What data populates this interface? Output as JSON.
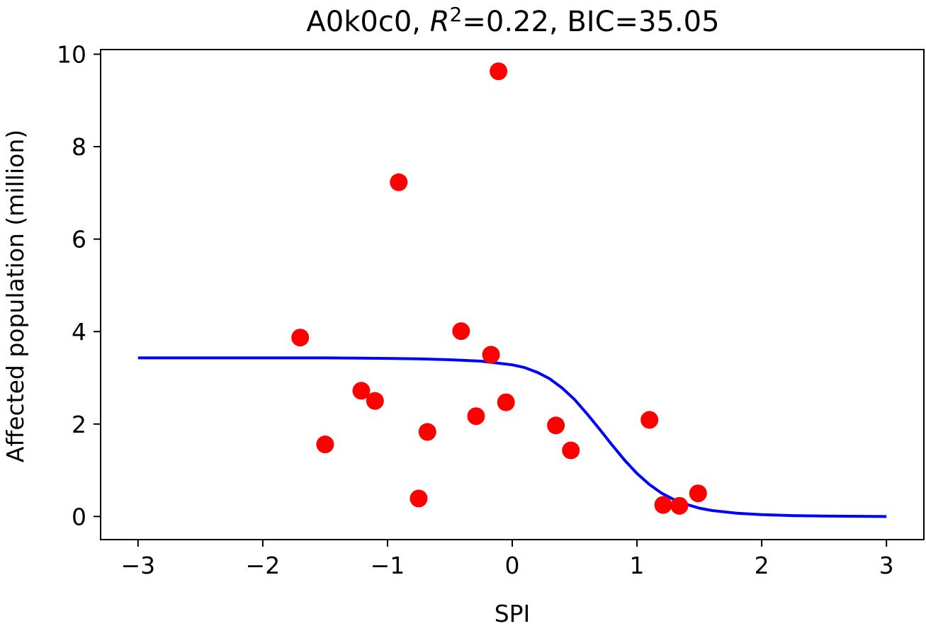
{
  "chart_data": {
    "type": "scatter",
    "title": {
      "model": "A0k0c0",
      "r2_symbol": "R",
      "r2_exponent": "2",
      "r2_value": "=0.22, BIC=35.05"
    },
    "xlabel": "SPI",
    "ylabel": "Affected population (million)",
    "xlim": [
      -3.3,
      3.3
    ],
    "ylim": [
      -0.5,
      10.1
    ],
    "xticks": [
      -3,
      -2,
      -1,
      0,
      1,
      2,
      3
    ],
    "xtick_labels": [
      "−3",
      "−2",
      "−1",
      "0",
      "1",
      "2",
      "3"
    ],
    "yticks": [
      0,
      2,
      4,
      6,
      8,
      10
    ],
    "ytick_labels": [
      "0",
      "2",
      "4",
      "6",
      "8",
      "10"
    ],
    "grid": false,
    "series": [
      {
        "kind": "points",
        "color": "#ff0000",
        "points": [
          {
            "x": -1.7,
            "y": 3.87
          },
          {
            "x": -1.5,
            "y": 1.56
          },
          {
            "x": -1.21,
            "y": 2.72
          },
          {
            "x": -1.1,
            "y": 2.5
          },
          {
            "x": -0.91,
            "y": 7.23
          },
          {
            "x": -0.75,
            "y": 0.39
          },
          {
            "x": -0.68,
            "y": 1.83
          },
          {
            "x": -0.41,
            "y": 4.01
          },
          {
            "x": -0.29,
            "y": 2.17
          },
          {
            "x": -0.17,
            "y": 3.5
          },
          {
            "x": -0.11,
            "y": 9.63
          },
          {
            "x": -0.05,
            "y": 2.47
          },
          {
            "x": 0.35,
            "y": 1.97
          },
          {
            "x": 0.47,
            "y": 1.43
          },
          {
            "x": 1.1,
            "y": 2.09
          },
          {
            "x": 1.21,
            "y": 0.25
          },
          {
            "x": 1.34,
            "y": 0.23
          },
          {
            "x": 1.49,
            "y": 0.5
          }
        ]
      },
      {
        "kind": "fitted-curve",
        "color": "#0000ff",
        "points": [
          {
            "x": -3.0,
            "y": 3.43
          },
          {
            "x": -2.5,
            "y": 3.43
          },
          {
            "x": -2.0,
            "y": 3.43
          },
          {
            "x": -1.5,
            "y": 3.43
          },
          {
            "x": -1.0,
            "y": 3.42
          },
          {
            "x": -0.75,
            "y": 3.41
          },
          {
            "x": -0.5,
            "y": 3.39
          },
          {
            "x": -0.25,
            "y": 3.36
          },
          {
            "x": 0.0,
            "y": 3.28
          },
          {
            "x": 0.1,
            "y": 3.22
          },
          {
            "x": 0.2,
            "y": 3.12
          },
          {
            "x": 0.3,
            "y": 2.98
          },
          {
            "x": 0.4,
            "y": 2.78
          },
          {
            "x": 0.5,
            "y": 2.53
          },
          {
            "x": 0.6,
            "y": 2.22
          },
          {
            "x": 0.7,
            "y": 1.89
          },
          {
            "x": 0.8,
            "y": 1.55
          },
          {
            "x": 0.9,
            "y": 1.22
          },
          {
            "x": 1.0,
            "y": 0.93
          },
          {
            "x": 1.1,
            "y": 0.69
          },
          {
            "x": 1.2,
            "y": 0.5
          },
          {
            "x": 1.3,
            "y": 0.36
          },
          {
            "x": 1.4,
            "y": 0.26
          },
          {
            "x": 1.5,
            "y": 0.18
          },
          {
            "x": 1.6,
            "y": 0.13
          },
          {
            "x": 1.8,
            "y": 0.07
          },
          {
            "x": 2.0,
            "y": 0.04
          },
          {
            "x": 2.25,
            "y": 0.02
          },
          {
            "x": 2.5,
            "y": 0.01
          },
          {
            "x": 3.0,
            "y": 0.0
          }
        ]
      }
    ]
  }
}
